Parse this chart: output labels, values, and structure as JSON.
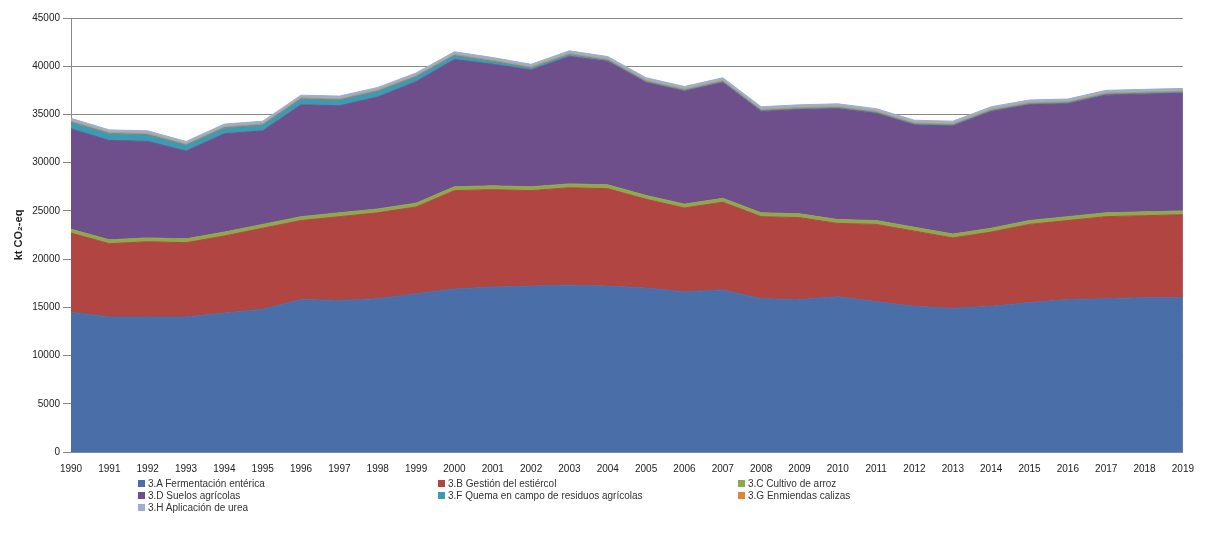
{
  "chart_data": {
    "type": "area",
    "stacked": true,
    "ylabel": "kt CO₂-eq",
    "categories": [
      "1990",
      "1991",
      "1992",
      "1993",
      "1994",
      "1995",
      "1996",
      "1997",
      "1998",
      "1999",
      "2000",
      "2001",
      "2002",
      "2003",
      "2004",
      "2005",
      "2006",
      "2007",
      "2008",
      "2009",
      "2010",
      "2011",
      "2012",
      "2013",
      "2014",
      "2015",
      "2016",
      "2017",
      "2018",
      "2019"
    ],
    "series": [
      {
        "name": "3.A Fermentación entérica",
        "color": "#4a6fa8",
        "values": [
          14500,
          14000,
          14000,
          14000,
          14400,
          14800,
          15800,
          15700,
          15900,
          16400,
          16900,
          17100,
          17200,
          17300,
          17200,
          17000,
          16600,
          16800,
          15900,
          15800,
          16100,
          15600,
          15100,
          14900,
          15100,
          15500,
          15800,
          15900,
          16000,
          16000
        ]
      },
      {
        "name": "3.B Gestión del estiércol",
        "color": "#b04542",
        "values": [
          8200,
          7600,
          7800,
          7700,
          8000,
          8400,
          8200,
          8700,
          8900,
          9000,
          10200,
          10100,
          9900,
          10100,
          10100,
          9200,
          8700,
          9100,
          8500,
          8500,
          7600,
          8000,
          7800,
          7300,
          7700,
          8100,
          8200,
          8500,
          8500,
          8600
        ]
      },
      {
        "name": "3.C Cultivo de arroz",
        "color": "#8fa84a",
        "values": [
          400,
          400,
          400,
          400,
          400,
          400,
          400,
          400,
          400,
          400,
          400,
          400,
          400,
          400,
          400,
          400,
          400,
          400,
          400,
          400,
          400,
          400,
          400,
          400,
          400,
          400,
          400,
          400,
          400,
          400
        ]
      },
      {
        "name": "3.D Suelos agrícolas",
        "color": "#6e4f8c",
        "values": [
          10400,
          10300,
          10000,
          9100,
          10200,
          9700,
          11600,
          11100,
          11600,
          12600,
          13200,
          12600,
          12100,
          13200,
          12800,
          11700,
          11700,
          12000,
          10500,
          10800,
          11500,
          11100,
          10600,
          11200,
          12100,
          12000,
          11700,
          12200,
          12200,
          12200
        ]
      },
      {
        "name": "3.F Quema en campo de residuos agrícolas",
        "color": "#3c9ab3",
        "values": [
          700,
          700,
          700,
          600,
          600,
          600,
          600,
          600,
          600,
          500,
          400,
          300,
          200,
          200,
          100,
          100,
          100,
          100,
          100,
          100,
          100,
          100,
          100,
          100,
          100,
          100,
          100,
          100,
          100,
          100
        ]
      },
      {
        "name": "3.G Enmiendas calizas",
        "color": "#d9883a",
        "values": [
          100,
          100,
          100,
          100,
          100,
          100,
          100,
          100,
          100,
          100,
          100,
          100,
          100,
          100,
          100,
          100,
          100,
          100,
          100,
          100,
          100,
          100,
          100,
          100,
          100,
          100,
          100,
          100,
          100,
          100
        ]
      },
      {
        "name": "3.H Aplicación de urea",
        "color": "#9aaed0",
        "values": [
          300,
          300,
          300,
          300,
          300,
          300,
          300,
          300,
          300,
          300,
          300,
          300,
          300,
          300,
          300,
          300,
          300,
          300,
          300,
          300,
          300,
          300,
          300,
          300,
          300,
          300,
          300,
          300,
          300,
          300
        ]
      }
    ],
    "ylim": [
      0,
      45000
    ],
    "yticks": [
      0,
      5000,
      10000,
      15000,
      20000,
      25000,
      30000,
      35000,
      40000,
      45000
    ],
    "grid": "y",
    "legend": "bottom"
  }
}
